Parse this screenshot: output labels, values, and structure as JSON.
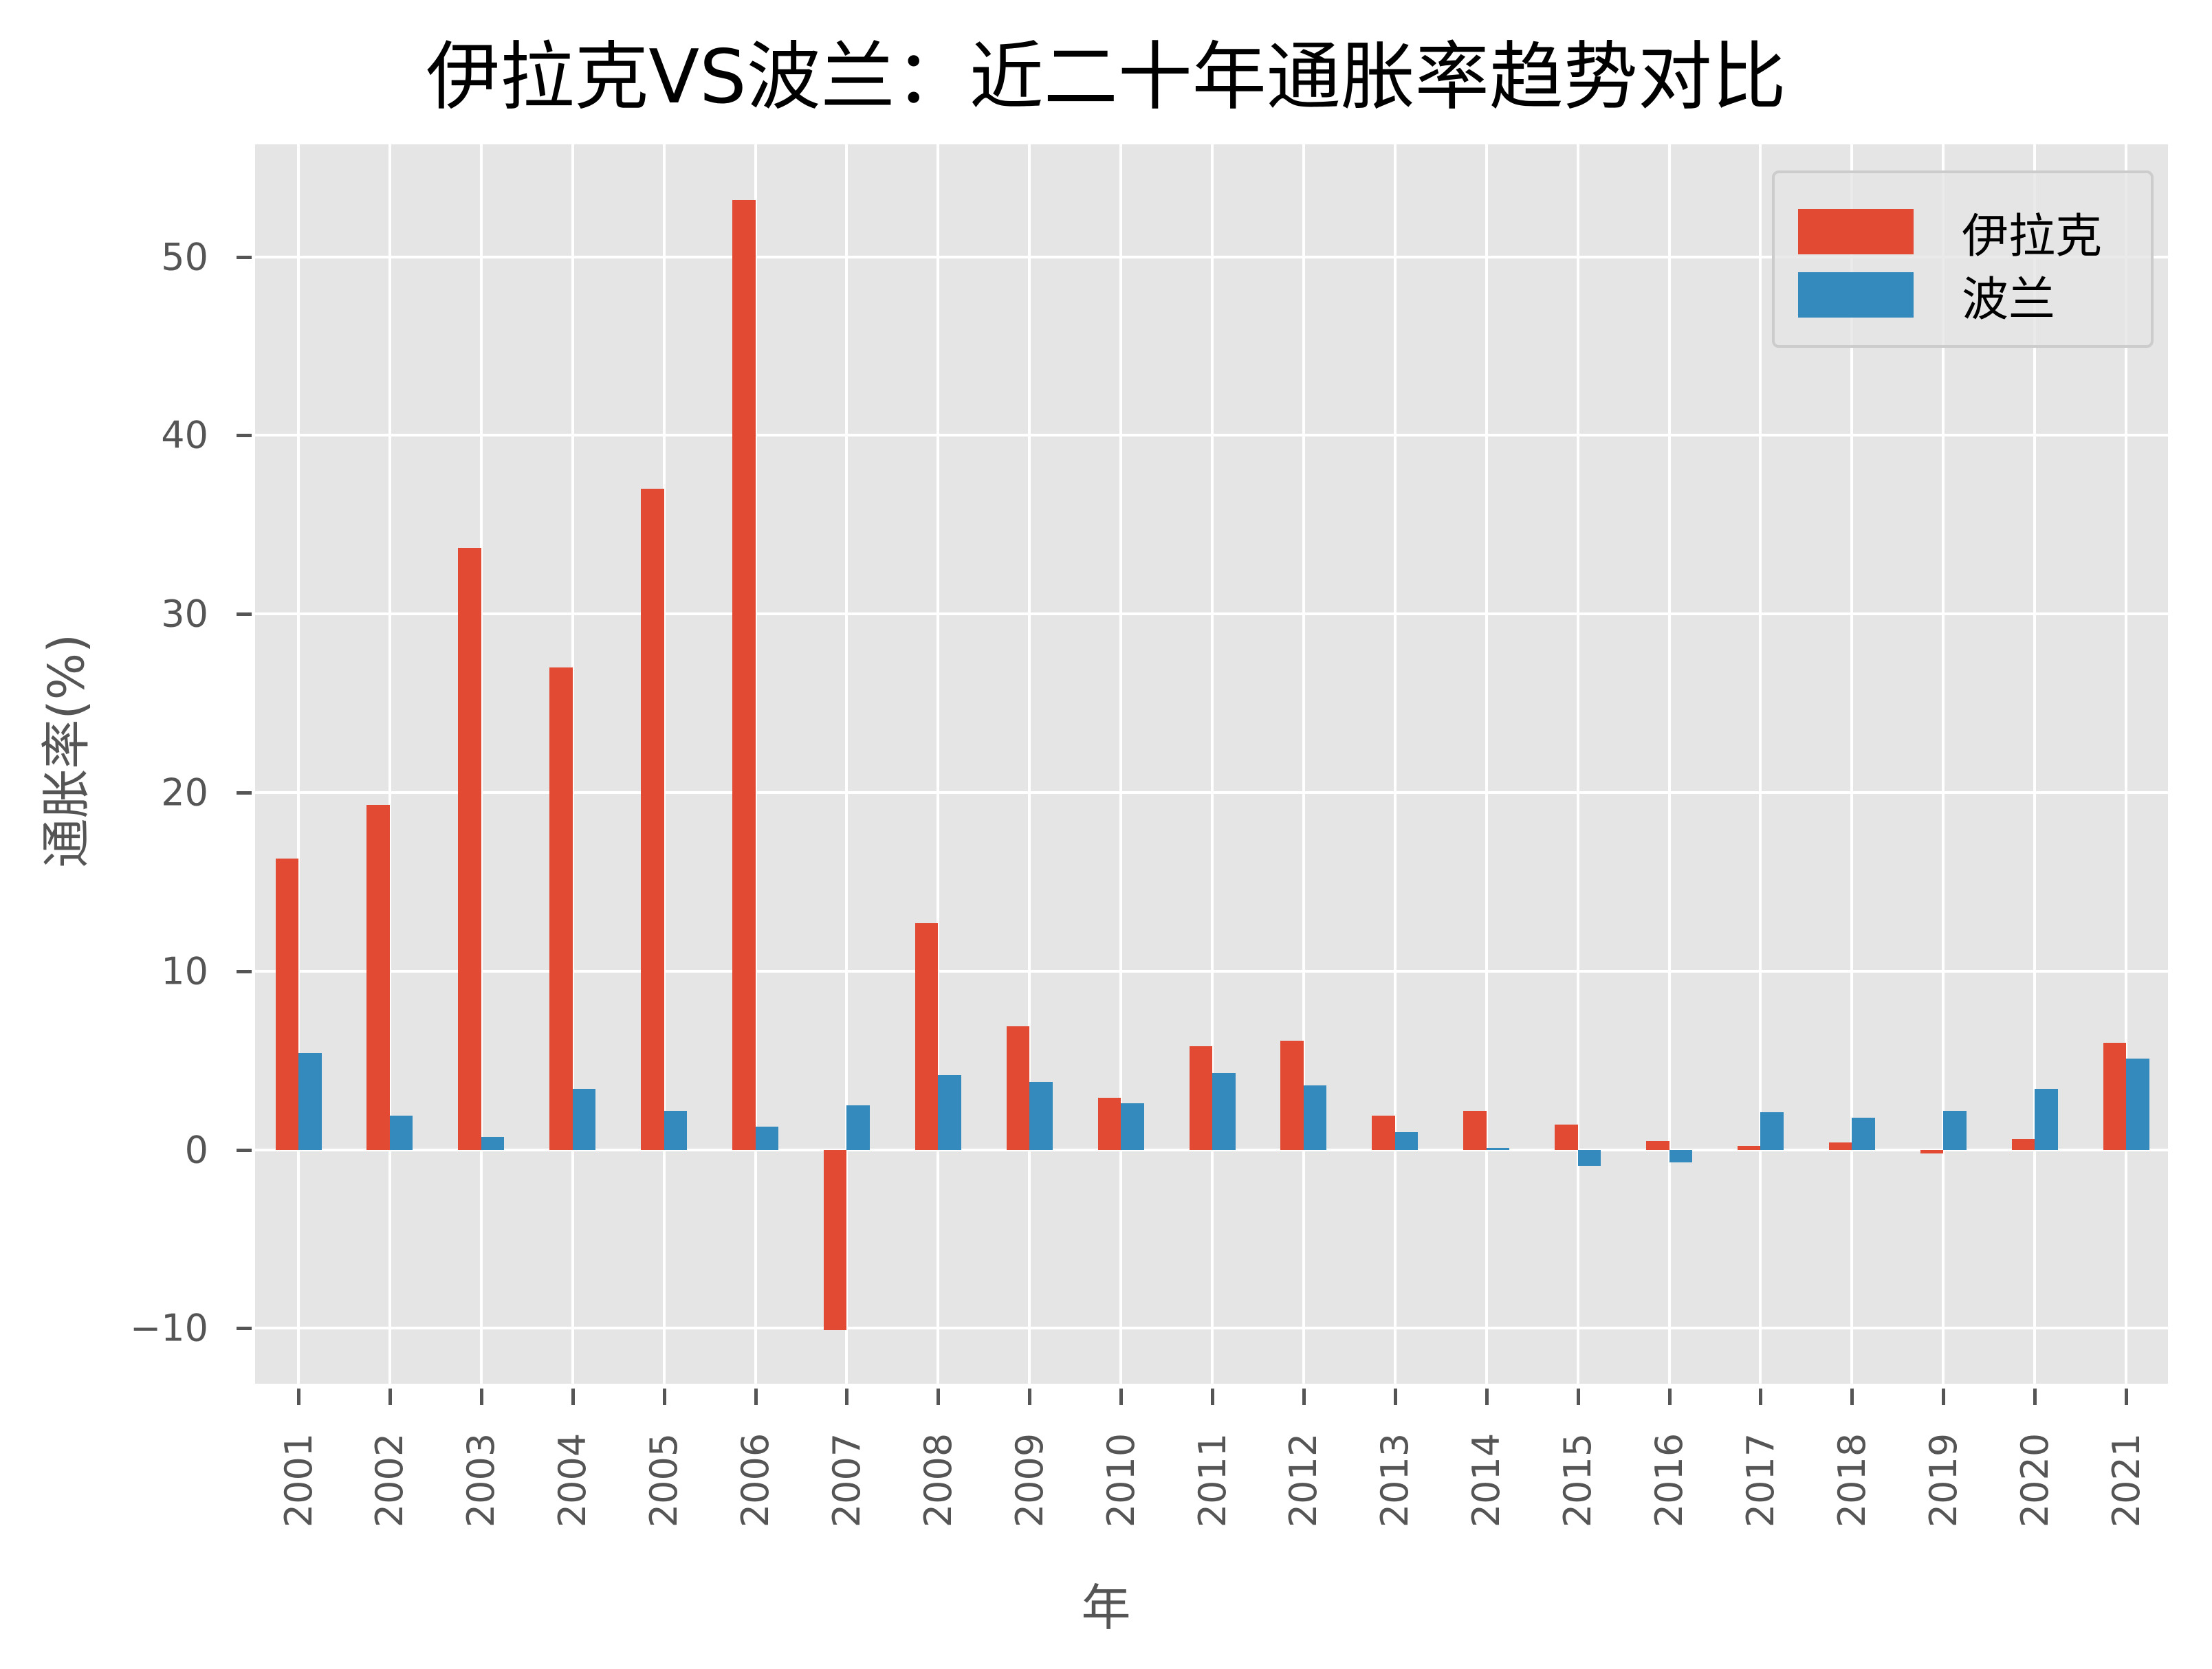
{
  "chart_data": {
    "type": "bar",
    "title": "伊拉克VS波兰：近二十年通胀率趋势对比",
    "xlabel": "年",
    "ylabel": "通胀率(%)",
    "categories": [
      "2001",
      "2002",
      "2003",
      "2004",
      "2005",
      "2006",
      "2007",
      "2008",
      "2009",
      "2010",
      "2011",
      "2012",
      "2013",
      "2014",
      "2015",
      "2016",
      "2017",
      "2018",
      "2019",
      "2020",
      "2021"
    ],
    "series": [
      {
        "name": "伊拉克",
        "color": "#E24A33",
        "values": [
          16.3,
          19.3,
          33.7,
          27.0,
          37.0,
          53.2,
          -10.1,
          12.7,
          6.9,
          2.9,
          5.8,
          6.1,
          1.9,
          2.2,
          1.4,
          0.5,
          0.2,
          0.4,
          -0.2,
          0.6,
          6.0
        ]
      },
      {
        "name": "波兰",
        "color": "#348ABD",
        "values": [
          5.4,
          1.9,
          0.7,
          3.4,
          2.2,
          1.3,
          2.5,
          4.2,
          3.8,
          2.6,
          4.3,
          3.6,
          1.0,
          0.1,
          -0.9,
          -0.7,
          2.1,
          1.8,
          2.2,
          3.4,
          5.1
        ]
      }
    ],
    "yticks": [
      -10,
      0,
      10,
      20,
      30,
      40,
      50
    ],
    "ylim": [
      -13.1,
      56.3
    ],
    "grid": true,
    "legend_position": "upper right",
    "style": "ggplot"
  },
  "labels": {
    "title": "伊拉克VS波兰：近二十年通胀率趋势对比",
    "xlabel": "年",
    "ylabel": "通胀率(%)",
    "legend": [
      "伊拉克",
      "波兰"
    ]
  }
}
